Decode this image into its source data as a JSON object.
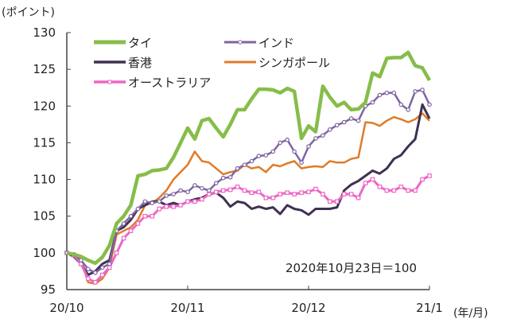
{
  "chart_data": {
    "type": "line",
    "ylabel": "(ポイント)",
    "xlabel": "(年/月)",
    "annotation": "2020年10月23日＝100",
    "ylim": [
      95,
      130
    ],
    "yticks": [
      95,
      100,
      105,
      110,
      115,
      120,
      125,
      130
    ],
    "x_range": [
      0,
      51
    ],
    "xticks": [
      {
        "label": "20/10",
        "index": 0
      },
      {
        "label": "20/11",
        "index": 17
      },
      {
        "label": "20/12",
        "index": 34
      },
      {
        "label": "21/1",
        "index": 51
      }
    ],
    "grid": false,
    "legend_position": "top",
    "series": [
      {
        "name": "タイ",
        "color": "#86bd4a",
        "marker": false,
        "width": 4.5,
        "values": [
          100,
          99.8,
          99.5,
          99,
          98.6,
          99.4,
          101,
          104,
          105,
          106.5,
          110.5,
          110.7,
          111.2,
          111.3,
          111.5,
          113,
          115,
          117,
          115.5,
          118,
          118.3,
          117,
          115.8,
          117.5,
          119.5,
          119.5,
          121,
          122.3,
          122.3,
          122.2,
          121.8,
          122.4,
          122,
          115.6,
          117.3,
          116.5,
          122.7,
          121.2,
          120,
          120.5,
          119.5,
          119.6,
          120.5,
          124.5,
          124,
          126.5,
          126.6,
          126.6,
          127.3,
          125.5,
          125.2,
          123.5
        ]
      },
      {
        "name": "インド",
        "color": "#8064a2",
        "marker": "circle",
        "width": 2.5,
        "values": [
          100,
          99.8,
          99,
          97.8,
          97.3,
          98,
          98.5,
          103,
          104,
          105,
          106,
          107,
          106.8,
          107,
          107.8,
          108,
          108.5,
          108.3,
          109.2,
          108.8,
          108.5,
          109.5,
          110.2,
          110.3,
          111.5,
          112,
          112.5,
          113.2,
          113.3,
          113.8,
          115,
          115.4,
          113.8,
          112.3,
          114.5,
          115.6,
          116,
          116.8,
          117.4,
          117.8,
          118.3,
          118,
          120,
          120.5,
          121.5,
          121.8,
          121.8,
          120.2,
          119.5,
          122,
          122.2,
          120.2
        ]
      },
      {
        "name": "香港",
        "color": "#3f3151",
        "marker": false,
        "width": 3,
        "values": [
          100,
          99.5,
          98.5,
          97,
          97.5,
          98.5,
          99,
          103,
          103.5,
          104.5,
          106,
          106.5,
          107,
          107,
          106.5,
          106.8,
          106.5,
          107,
          107.3,
          107.5,
          108,
          108.2,
          107.5,
          106.3,
          107,
          106.8,
          106,
          106.3,
          106,
          106.2,
          105.3,
          106.5,
          106,
          105.8,
          105.2,
          106,
          106,
          106,
          106.2,
          108.5,
          109.3,
          109.8,
          110.5,
          111.2,
          110.8,
          111.5,
          112.8,
          113.3,
          114.5,
          115.5,
          120.2,
          118.3
        ]
      },
      {
        "name": "シンガポール",
        "color": "#e07b28",
        "marker": false,
        "width": 2.5,
        "values": [
          100,
          99.8,
          99,
          96,
          95.8,
          96.5,
          98,
          102.5,
          103,
          103.5,
          104.5,
          106.5,
          106.8,
          107.5,
          108.5,
          110,
          111,
          112,
          113.8,
          112.5,
          112.3,
          111.5,
          110.7,
          111,
          111.2,
          112,
          111.5,
          111.7,
          111,
          112,
          111.8,
          112.2,
          112.5,
          111.5,
          111.7,
          111.8,
          111.7,
          112.5,
          112.3,
          112.3,
          112.8,
          113,
          117.8,
          117.7,
          117.3,
          118,
          118.5,
          118.2,
          117.8,
          118.2,
          119,
          118
        ]
      },
      {
        "name": "オーストラリア",
        "color": "#ee66c6",
        "marker": "square",
        "width": 3,
        "values": [
          100,
          99.7,
          98.5,
          96.5,
          96,
          97,
          98,
          100,
          102,
          103,
          104,
          105,
          105,
          106,
          106.3,
          106.3,
          106.5,
          107,
          107,
          107.3,
          108,
          108.3,
          108.5,
          108.6,
          109,
          108.5,
          108.2,
          108.3,
          107.5,
          107.5,
          108,
          108.2,
          108,
          108.2,
          108.3,
          108.7,
          108,
          107,
          107,
          108,
          108,
          107.5,
          109.5,
          110,
          109,
          108.5,
          108.5,
          109,
          108.5,
          108.5,
          110,
          110.5
        ]
      }
    ]
  }
}
